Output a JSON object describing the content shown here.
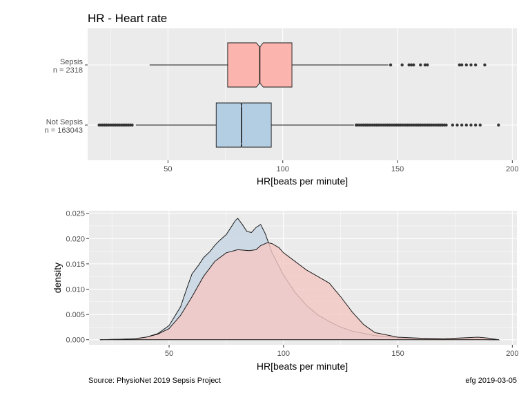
{
  "footer": {
    "source": "Source:  PhysioNet 2019 Sepsis Project",
    "credit": "efg 2019-03-05"
  },
  "colors": {
    "panel_bg": "#ebebeb",
    "grid": "#ffffff",
    "sepsis_fill": "#fbb4ae",
    "not_sepsis_fill": "#b3cde3",
    "density_sepsis_fill": "#f4c7c3",
    "density_not_sepsis_fill": "#c6d4e2",
    "outline": "#1a1a1a",
    "point": "#333333"
  },
  "chart_data": [
    {
      "type": "boxplot",
      "title": "HR  -  Heart rate",
      "xlabel": "HR[beats per minute]",
      "xlim": [
        15,
        202
      ],
      "xticks": [
        50,
        100,
        150,
        200
      ],
      "orientation": "horizontal",
      "notched": true,
      "grid": true,
      "categories": [
        {
          "label_line1": "Sepsis",
          "label_line2": "n = 2318",
          "whisker_low": 42,
          "q1": 76,
          "median": 90,
          "q3": 104,
          "whisker_high": 146,
          "notch_low": 88.5,
          "notch_high": 91.5,
          "outliers": [
            147,
            152,
            155,
            156,
            157,
            160,
            162,
            163,
            177,
            178,
            180,
            182,
            184,
            188
          ]
        },
        {
          "label_line1": "Not Sepsis",
          "label_line2": "n = 163043",
          "whisker_low": 36,
          "q1": 71,
          "median": 82,
          "q3": 95,
          "whisker_high": 131,
          "notch_low": 81.8,
          "notch_high": 82.2,
          "outliers_low_range": [
            20,
            35
          ],
          "outliers_high_range": [
            132,
            172
          ],
          "outliers_extra": [
            174,
            176,
            178,
            180,
            182,
            184,
            186,
            194
          ]
        }
      ]
    },
    {
      "type": "area",
      "xlabel": "HR[beats per minute]",
      "ylabel": "density",
      "xlim": [
        15,
        202
      ],
      "ylim": [
        -0.001,
        0.0255
      ],
      "xticks": [
        50,
        100,
        150,
        200
      ],
      "yticks": [
        "0.000",
        "0.005",
        "0.010",
        "0.015",
        "0.020",
        "0.025"
      ],
      "grid": true,
      "legend": "none",
      "series": [
        {
          "key": "not_sepsis",
          "x": [
            20,
            30,
            35,
            40,
            45,
            50,
            55,
            58,
            60,
            63,
            65,
            68,
            70,
            72,
            75,
            77,
            79,
            80,
            82,
            84,
            86,
            88,
            90,
            92,
            95,
            100,
            105,
            110,
            115,
            120,
            125,
            130,
            140,
            150,
            160,
            170,
            180,
            190,
            194
          ],
          "y": [
            0,
            0.0001,
            0.0002,
            0.0005,
            0.0012,
            0.0028,
            0.0065,
            0.0105,
            0.013,
            0.0148,
            0.0162,
            0.0175,
            0.0187,
            0.0196,
            0.0208,
            0.0222,
            0.0236,
            0.024,
            0.0228,
            0.0214,
            0.0212,
            0.0222,
            0.0228,
            0.021,
            0.0172,
            0.0128,
            0.0094,
            0.0068,
            0.0049,
            0.0036,
            0.0025,
            0.0017,
            0.0008,
            0.0004,
            0.0002,
            0.0001,
            0.0001,
            0.0,
            0
          ]
        },
        {
          "key": "sepsis",
          "x": [
            20,
            30,
            35,
            40,
            45,
            50,
            55,
            60,
            65,
            70,
            75,
            80,
            85,
            88,
            90,
            93,
            95,
            98,
            100,
            105,
            110,
            115,
            120,
            125,
            130,
            135,
            140,
            150,
            160,
            170,
            180,
            185,
            190,
            194
          ],
          "y": [
            0,
            0.0001,
            0.0002,
            0.0005,
            0.0011,
            0.0022,
            0.0048,
            0.0085,
            0.0125,
            0.0155,
            0.0172,
            0.0178,
            0.0176,
            0.0178,
            0.0186,
            0.0192,
            0.019,
            0.0182,
            0.0172,
            0.0155,
            0.0138,
            0.0125,
            0.0112,
            0.0085,
            0.0055,
            0.003,
            0.0014,
            0.0005,
            0.0003,
            0.0002,
            0.0004,
            0.0005,
            0.0003,
            0
          ]
        }
      ]
    }
  ]
}
